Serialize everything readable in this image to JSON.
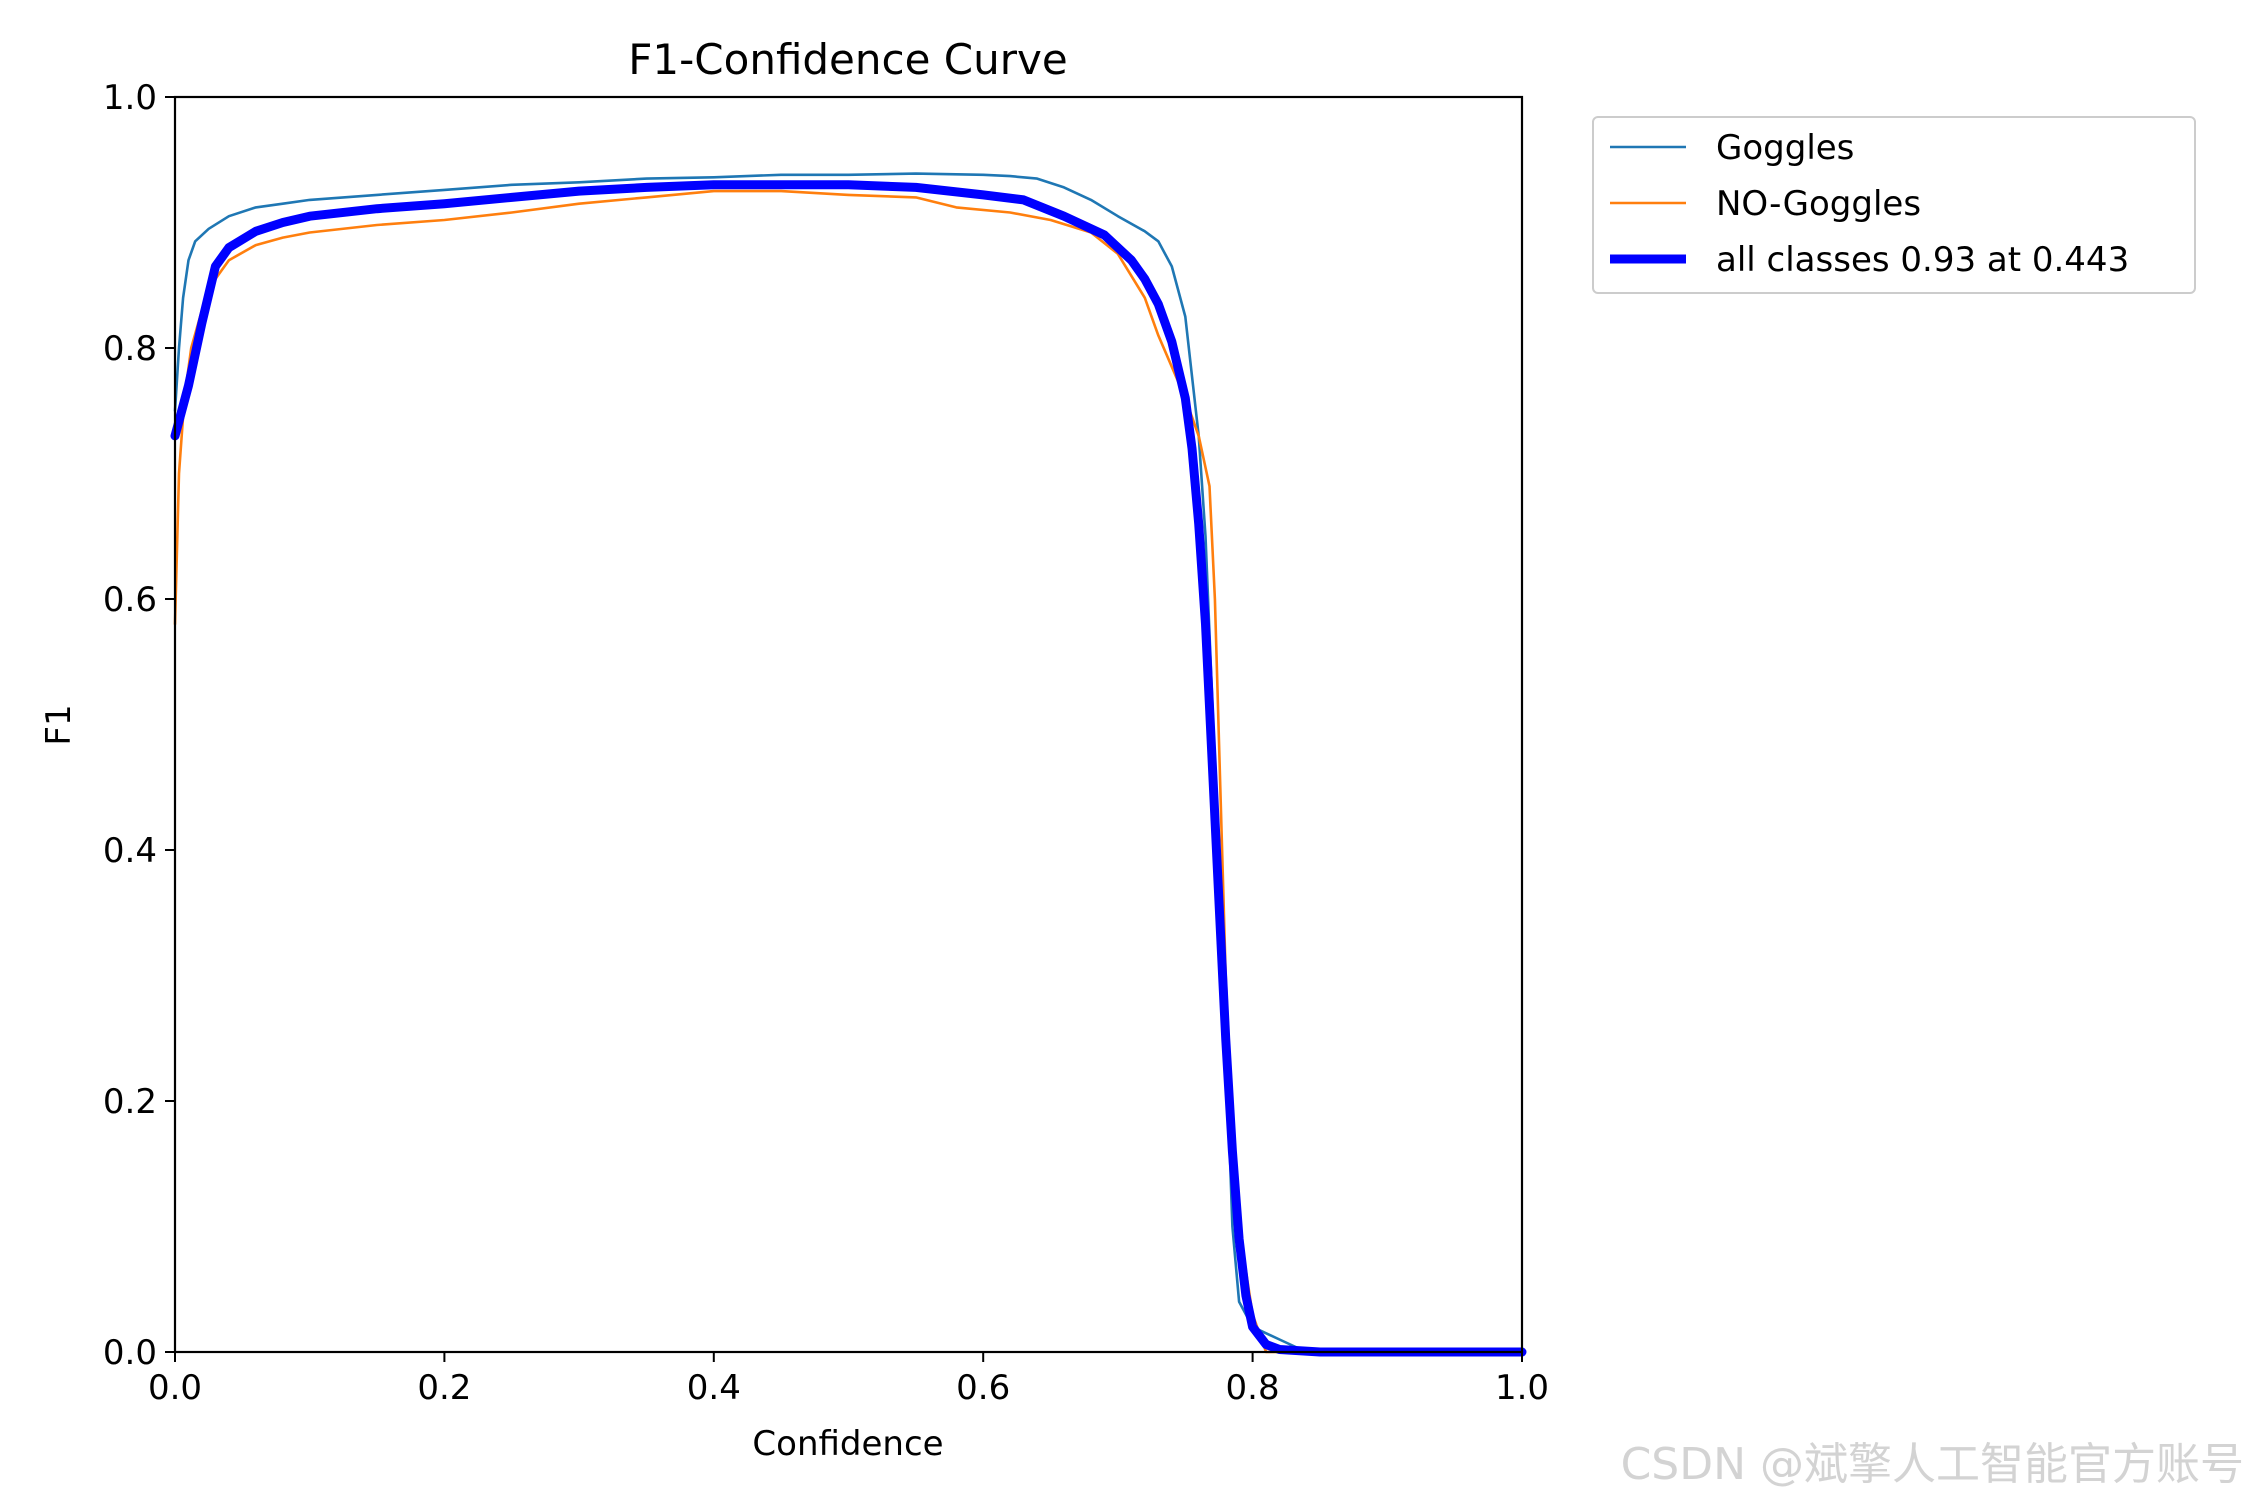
{
  "chart_data": {
    "type": "line",
    "title": "F1-Confidence Curve",
    "xlabel": "Confidence",
    "ylabel": "F1",
    "xlim": [
      0,
      1
    ],
    "ylim": [
      0,
      1
    ],
    "xticks": [
      "0.0",
      "0.2",
      "0.4",
      "0.6",
      "0.8",
      "1.0"
    ],
    "yticks": [
      "0.0",
      "0.2",
      "0.4",
      "0.6",
      "0.8",
      "1.0"
    ],
    "grid": false,
    "legend_position": "outside-top-right",
    "series": [
      {
        "name": "Goggles",
        "color": "#1f77b4",
        "style": "thin",
        "points": [
          [
            0.0,
            0.75
          ],
          [
            0.003,
            0.8
          ],
          [
            0.006,
            0.84
          ],
          [
            0.01,
            0.87
          ],
          [
            0.015,
            0.885
          ],
          [
            0.025,
            0.895
          ],
          [
            0.04,
            0.905
          ],
          [
            0.06,
            0.912
          ],
          [
            0.08,
            0.915
          ],
          [
            0.1,
            0.918
          ],
          [
            0.15,
            0.922
          ],
          [
            0.2,
            0.926
          ],
          [
            0.25,
            0.93
          ],
          [
            0.3,
            0.932
          ],
          [
            0.35,
            0.935
          ],
          [
            0.4,
            0.936
          ],
          [
            0.45,
            0.938
          ],
          [
            0.5,
            0.938
          ],
          [
            0.55,
            0.939
          ],
          [
            0.6,
            0.938
          ],
          [
            0.62,
            0.937
          ],
          [
            0.64,
            0.935
          ],
          [
            0.66,
            0.928
          ],
          [
            0.68,
            0.918
          ],
          [
            0.7,
            0.905
          ],
          [
            0.72,
            0.893
          ],
          [
            0.73,
            0.885
          ],
          [
            0.74,
            0.865
          ],
          [
            0.75,
            0.825
          ],
          [
            0.76,
            0.73
          ],
          [
            0.765,
            0.65
          ],
          [
            0.77,
            0.52
          ],
          [
            0.775,
            0.38
          ],
          [
            0.78,
            0.25
          ],
          [
            0.785,
            0.1
          ],
          [
            0.79,
            0.04
          ],
          [
            0.8,
            0.02
          ],
          [
            0.82,
            0.01
          ],
          [
            0.84,
            0.0
          ],
          [
            1.0,
            0.0
          ]
        ]
      },
      {
        "name": "NO-Goggles",
        "color": "#ff7f0e",
        "style": "thin",
        "points": [
          [
            0.0,
            0.58
          ],
          [
            0.003,
            0.7
          ],
          [
            0.007,
            0.76
          ],
          [
            0.012,
            0.8
          ],
          [
            0.02,
            0.83
          ],
          [
            0.03,
            0.855
          ],
          [
            0.04,
            0.87
          ],
          [
            0.06,
            0.882
          ],
          [
            0.08,
            0.888
          ],
          [
            0.1,
            0.892
          ],
          [
            0.15,
            0.898
          ],
          [
            0.2,
            0.902
          ],
          [
            0.25,
            0.908
          ],
          [
            0.3,
            0.915
          ],
          [
            0.35,
            0.92
          ],
          [
            0.4,
            0.925
          ],
          [
            0.45,
            0.925
          ],
          [
            0.5,
            0.922
          ],
          [
            0.55,
            0.92
          ],
          [
            0.58,
            0.912
          ],
          [
            0.62,
            0.908
          ],
          [
            0.65,
            0.902
          ],
          [
            0.68,
            0.892
          ],
          [
            0.7,
            0.875
          ],
          [
            0.72,
            0.84
          ],
          [
            0.73,
            0.81
          ],
          [
            0.74,
            0.785
          ],
          [
            0.75,
            0.76
          ],
          [
            0.76,
            0.73
          ],
          [
            0.768,
            0.69
          ],
          [
            0.772,
            0.6
          ],
          [
            0.776,
            0.45
          ],
          [
            0.78,
            0.3
          ],
          [
            0.785,
            0.18
          ],
          [
            0.79,
            0.1
          ],
          [
            0.8,
            0.03
          ],
          [
            0.81,
            0.0
          ],
          [
            1.0,
            0.0
          ]
        ]
      },
      {
        "name": "all classes 0.93 at 0.443",
        "color": "#0000ff",
        "style": "thick",
        "points": [
          [
            0.0,
            0.73
          ],
          [
            0.01,
            0.77
          ],
          [
            0.02,
            0.82
          ],
          [
            0.03,
            0.865
          ],
          [
            0.04,
            0.88
          ],
          [
            0.06,
            0.893
          ],
          [
            0.08,
            0.9
          ],
          [
            0.1,
            0.905
          ],
          [
            0.15,
            0.911
          ],
          [
            0.2,
            0.915
          ],
          [
            0.25,
            0.92
          ],
          [
            0.3,
            0.925
          ],
          [
            0.35,
            0.928
          ],
          [
            0.4,
            0.93
          ],
          [
            0.443,
            0.93
          ],
          [
            0.5,
            0.93
          ],
          [
            0.55,
            0.928
          ],
          [
            0.6,
            0.922
          ],
          [
            0.63,
            0.918
          ],
          [
            0.66,
            0.905
          ],
          [
            0.69,
            0.89
          ],
          [
            0.71,
            0.87
          ],
          [
            0.72,
            0.855
          ],
          [
            0.73,
            0.835
          ],
          [
            0.74,
            0.805
          ],
          [
            0.75,
            0.76
          ],
          [
            0.755,
            0.72
          ],
          [
            0.76,
            0.66
          ],
          [
            0.765,
            0.58
          ],
          [
            0.77,
            0.47
          ],
          [
            0.775,
            0.36
          ],
          [
            0.78,
            0.25
          ],
          [
            0.785,
            0.16
          ],
          [
            0.79,
            0.09
          ],
          [
            0.795,
            0.045
          ],
          [
            0.8,
            0.02
          ],
          [
            0.81,
            0.006
          ],
          [
            0.82,
            0.002
          ],
          [
            0.85,
            0.0
          ],
          [
            1.0,
            0.0
          ]
        ]
      }
    ]
  },
  "watermark": "CSDN @斌擎人工智能官方账号"
}
